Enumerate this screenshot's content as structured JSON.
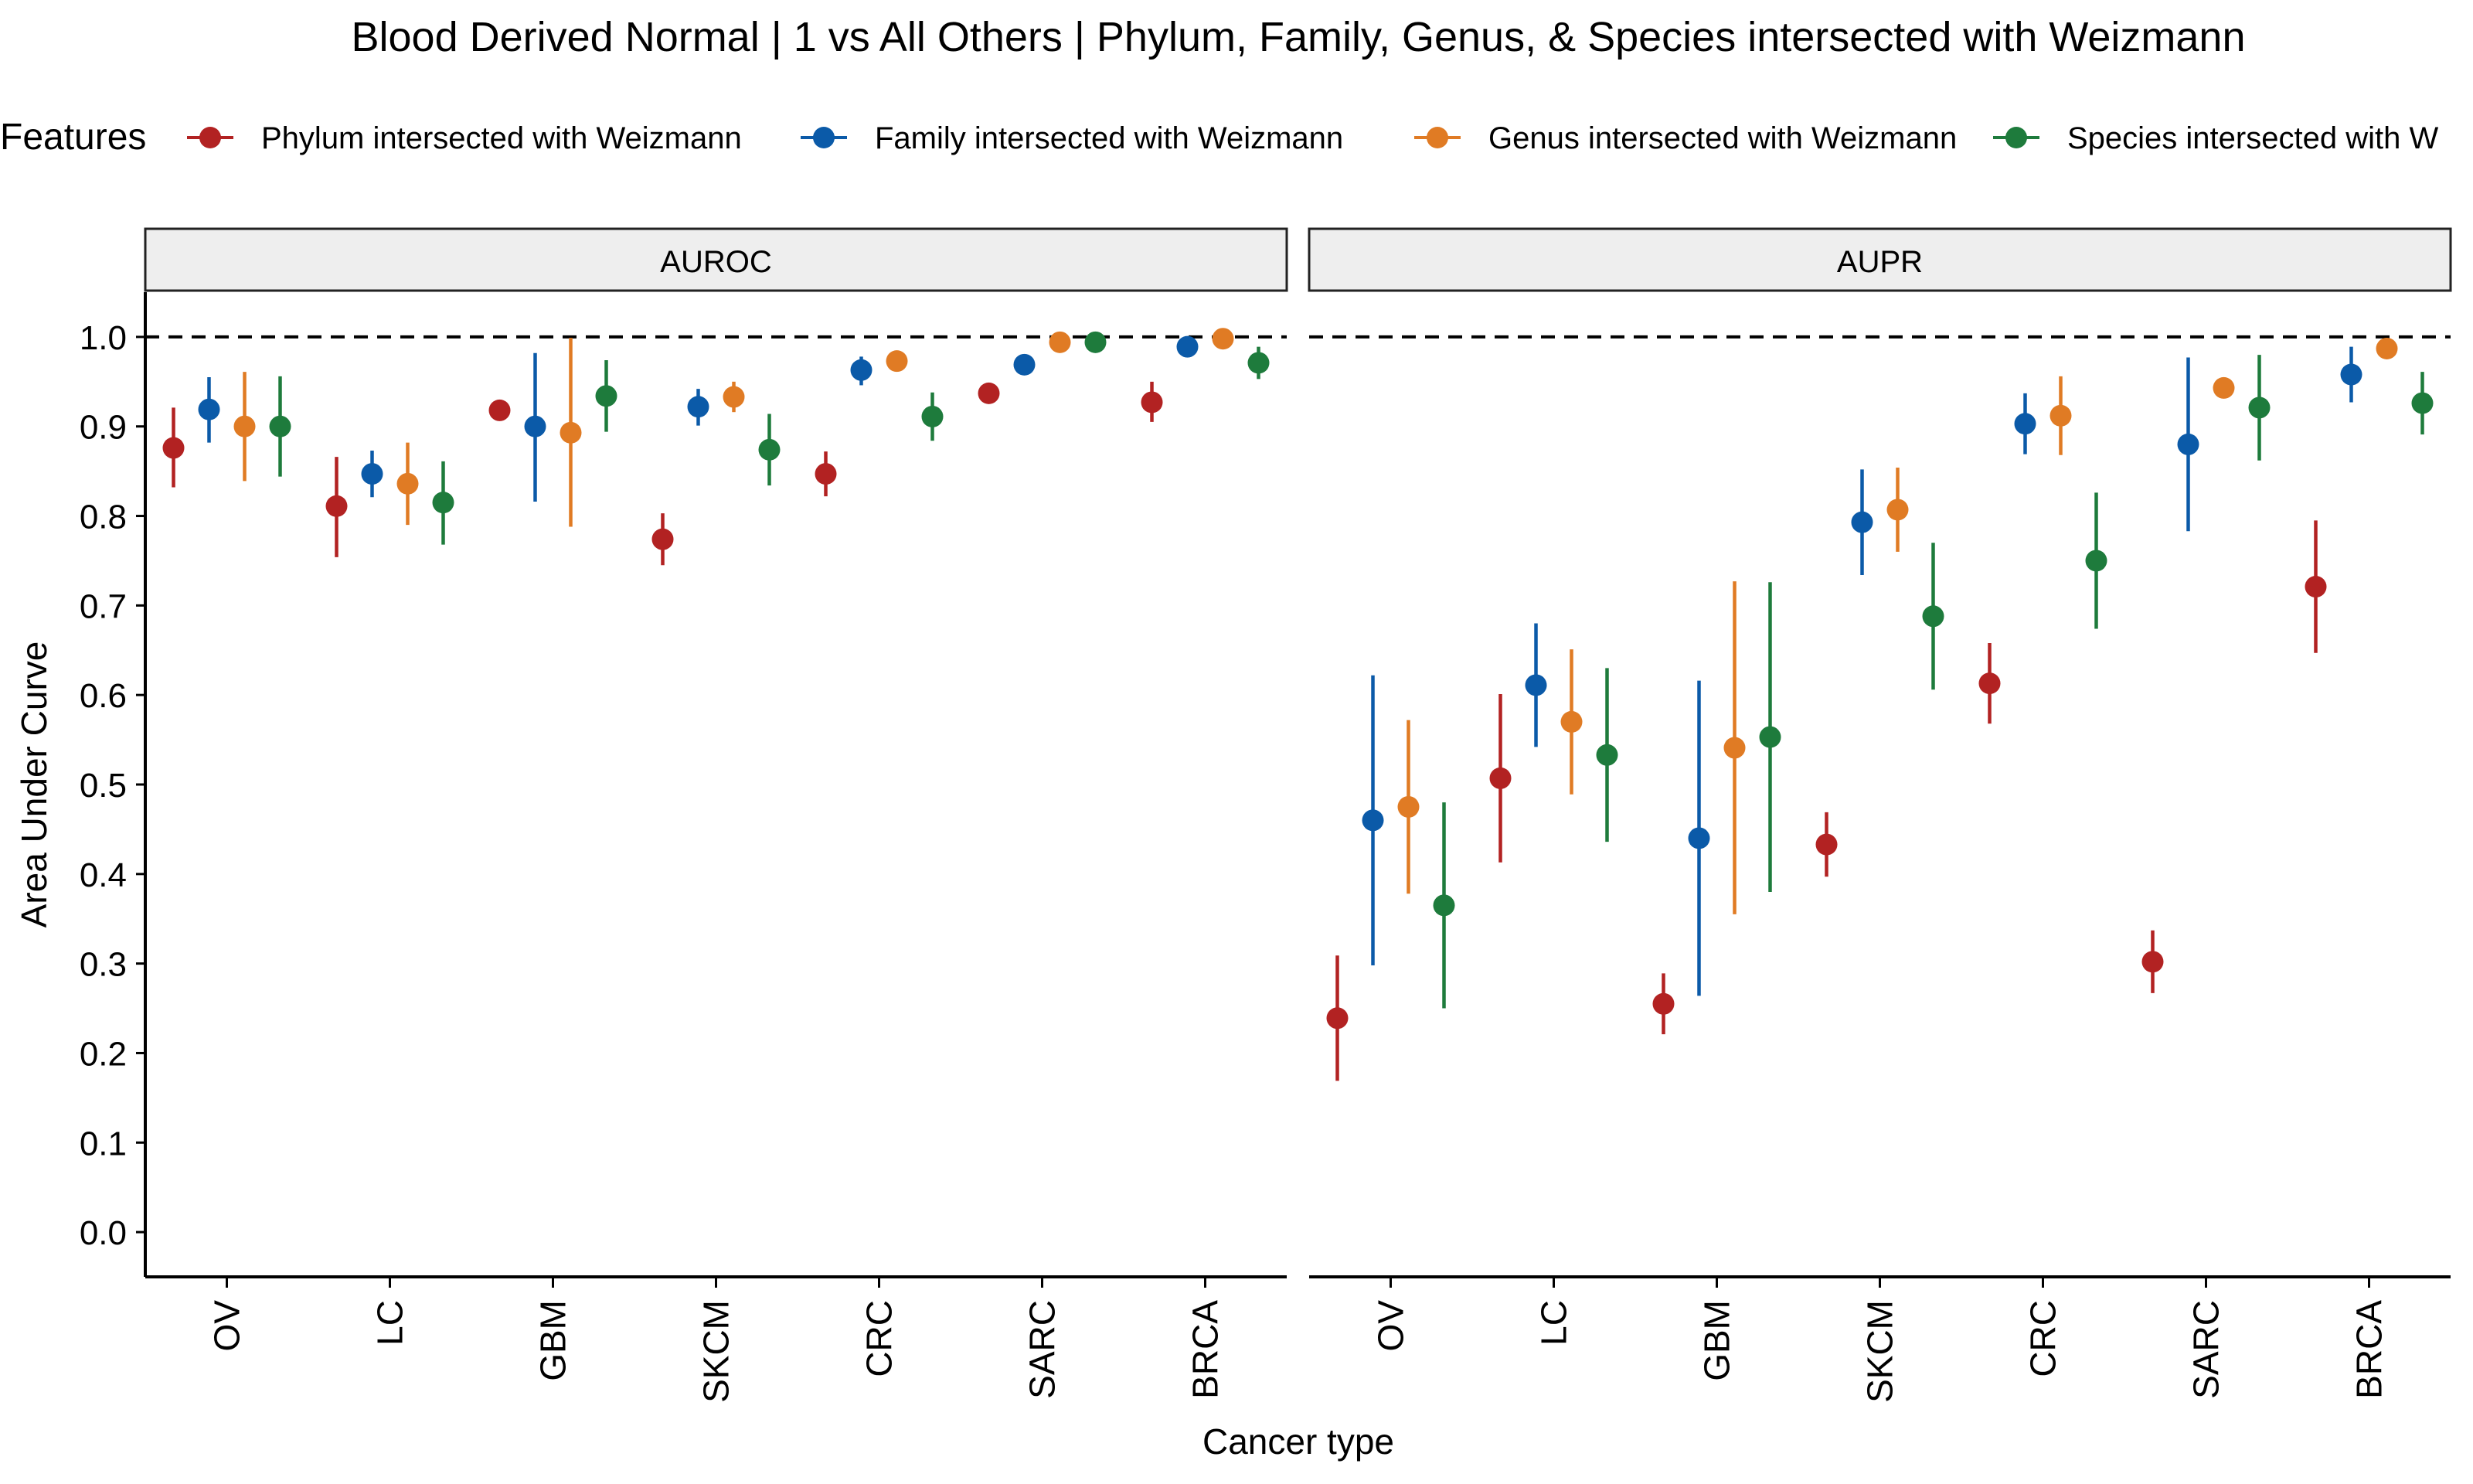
{
  "chart_data": {
    "type": "scatter",
    "title": "Blood Derived Normal | 1 vs All Others | Phylum, Family, Genus, & Species intersected with Weizmann",
    "xlabel": "Cancer type",
    "ylabel": "Area Under Curve",
    "ylim": [
      -0.05,
      1.05
    ],
    "yticks": [
      "0.0",
      "0.1",
      "0.2",
      "0.3",
      "0.4",
      "0.5",
      "0.6",
      "0.7",
      "0.8",
      "0.9",
      "1.0"
    ],
    "reference_line": 1.0,
    "categories": [
      "OV",
      "LC",
      "GBM",
      "SKCM",
      "CRC",
      "SARC",
      "BRCA"
    ],
    "legend": {
      "title": "Features",
      "position": "top",
      "entries": [
        "Phylum intersected with Weizmann",
        "Family intersected with Weizmann",
        "Genus intersected with Weizmann",
        "Species intersected with W"
      ]
    },
    "series_colors": [
      "#B22222",
      "#0B5AA8",
      "#E07B24",
      "#1E7B3C"
    ],
    "panels": [
      {
        "label": "AUROC",
        "series": [
          {
            "name": "Phylum intersected with Weizmann",
            "values": [
              0.876,
              0.811,
              0.918,
              0.774,
              0.847,
              0.937,
              0.927
            ],
            "lower": [
              0.832,
              0.754,
              0.918,
              0.745,
              0.822,
              0.937,
              0.905
            ],
            "upper": [
              0.921,
              0.866,
              0.918,
              0.803,
              0.872,
              0.937,
              0.95
            ]
          },
          {
            "name": "Family intersected with Weizmann",
            "values": [
              0.919,
              0.847,
              0.9,
              0.922,
              0.963,
              0.969,
              0.989
            ],
            "lower": [
              0.882,
              0.821,
              0.816,
              0.901,
              0.946,
              0.969,
              0.989
            ],
            "upper": [
              0.955,
              0.873,
              0.982,
              0.942,
              0.978,
              0.969,
              0.989
            ]
          },
          {
            "name": "Genus intersected with Weizmann",
            "values": [
              0.9,
              0.836,
              0.893,
              0.933,
              0.973,
              0.994,
              0.998
            ],
            "lower": [
              0.839,
              0.79,
              0.788,
              0.916,
              0.973,
              0.994,
              0.998
            ],
            "upper": [
              0.961,
              0.882,
              0.999,
              0.95,
              0.973,
              0.994,
              0.998
            ]
          },
          {
            "name": "Species intersected with W",
            "values": [
              0.9,
              0.815,
              0.934,
              0.874,
              0.911,
              0.994,
              0.971
            ],
            "lower": [
              0.844,
              0.768,
              0.894,
              0.834,
              0.884,
              0.994,
              0.953
            ],
            "upper": [
              0.956,
              0.861,
              0.974,
              0.914,
              0.938,
              0.994,
              0.989
            ]
          }
        ]
      },
      {
        "label": "AUPR",
        "series": [
          {
            "name": "Phylum intersected with Weizmann",
            "values": [
              0.239,
              0.507,
              0.255,
              0.433,
              0.613,
              0.302,
              0.721
            ],
            "lower": [
              0.169,
              0.413,
              0.221,
              0.397,
              0.568,
              0.267,
              0.647
            ],
            "upper": [
              0.309,
              0.601,
              0.289,
              0.469,
              0.658,
              0.337,
              0.795
            ]
          },
          {
            "name": "Family intersected with Weizmann",
            "values": [
              0.46,
              0.611,
              0.44,
              0.793,
              0.903,
              0.88,
              0.958
            ],
            "lower": [
              0.298,
              0.542,
              0.264,
              0.734,
              0.869,
              0.783,
              0.927
            ],
            "upper": [
              0.622,
              0.68,
              0.616,
              0.852,
              0.937,
              0.977,
              0.989
            ]
          },
          {
            "name": "Genus intersected with Weizmann",
            "values": [
              0.475,
              0.57,
              0.541,
              0.807,
              0.912,
              0.943,
              0.987
            ],
            "lower": [
              0.378,
              0.489,
              0.355,
              0.76,
              0.868,
              0.943,
              0.987
            ],
            "upper": [
              0.572,
              0.651,
              0.727,
              0.854,
              0.956,
              0.943,
              0.987
            ]
          },
          {
            "name": "Species intersected with W",
            "values": [
              0.365,
              0.533,
              0.553,
              0.688,
              0.75,
              0.921,
              0.926
            ],
            "lower": [
              0.25,
              0.436,
              0.38,
              0.606,
              0.674,
              0.862,
              0.891
            ],
            "upper": [
              0.48,
              0.63,
              0.726,
              0.77,
              0.826,
              0.98,
              0.961
            ]
          }
        ]
      }
    ]
  }
}
